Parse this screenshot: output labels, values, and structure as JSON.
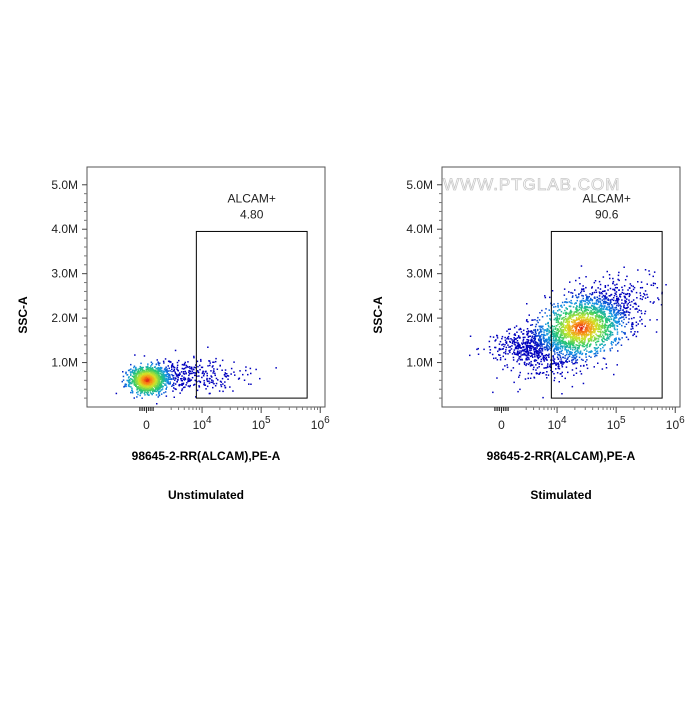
{
  "watermark": "WWW.PTGLAB.COM",
  "chart_data": [
    {
      "type": "scatter",
      "caption": "Unstimulated",
      "xlabel": "98645-2-RR(ALCAM),PE-A",
      "ylabel": "SSC-A",
      "x_scale": "biexponential",
      "x_tick_labels": [
        "0",
        "10^4",
        "10^5",
        "10^6"
      ],
      "y_tick_labels": [
        "1.0M",
        "2.0M",
        "3.0M",
        "4.0M",
        "5.0M"
      ],
      "ylim": [
        0,
        5400000
      ],
      "gate": {
        "name": "ALCAM+",
        "percent": "4.80",
        "x_range": [
          8000,
          600000
        ],
        "y_range": [
          200000,
          3950000
        ]
      },
      "population": {
        "x_center": 0,
        "y_center": 620000,
        "color_scale": "density (blue-green-yellow-red)"
      },
      "series": [
        {
          "values": []
        }
      ]
    },
    {
      "type": "scatter",
      "caption": "Stimulated",
      "xlabel": "98645-2-RR(ALCAM),PE-A",
      "ylabel": "SSC-A",
      "x_scale": "biexponential",
      "x_tick_labels": [
        "0",
        "10^4",
        "10^5",
        "10^6"
      ],
      "y_tick_labels": [
        "1.0M",
        "2.0M",
        "3.0M",
        "4.0M",
        "5.0M"
      ],
      "ylim": [
        0,
        5400000
      ],
      "gate": {
        "name": "ALCAM+",
        "percent": "90.6",
        "x_range": [
          8000,
          600000
        ],
        "y_range": [
          200000,
          3950000
        ]
      },
      "population": {
        "x_center": 25000,
        "y_center": 1800000,
        "color_scale": "density (blue-green-yellow-red)"
      },
      "series": [
        {
          "values": []
        }
      ]
    }
  ]
}
